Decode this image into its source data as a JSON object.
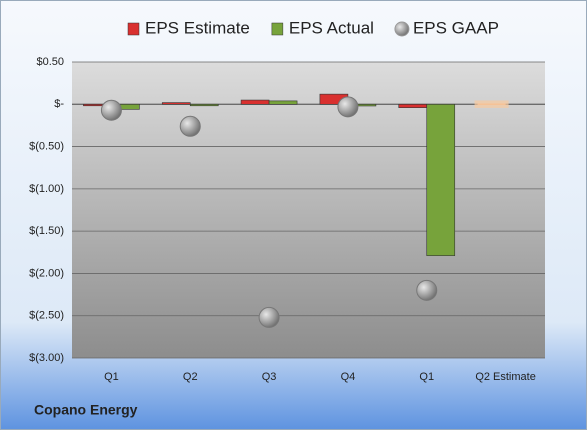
{
  "chart_data": {
    "type": "bar",
    "categories": [
      "Q1",
      "Q2",
      "Q3",
      "Q4",
      "Q1",
      "Q2 Estimate"
    ],
    "series": [
      {
        "name": "EPS Estimate",
        "color": "#d9302f",
        "colors": [
          "#d9302f",
          "#d9302f",
          "#d9302f",
          "#d9302f",
          "#d9302f",
          "#f4b183"
        ],
        "values": [
          -0.01,
          0.02,
          0.05,
          0.12,
          -0.04,
          0.01
        ]
      },
      {
        "name": "EPS Actual",
        "color": "#77a33b",
        "values": [
          -0.06,
          -0.01,
          0.04,
          -0.02,
          -1.79,
          null
        ]
      },
      {
        "name": "EPS GAAP",
        "color": "#9a9a9a",
        "type": "scatter",
        "values": [
          -0.07,
          -0.26,
          -2.52,
          -0.03,
          -2.2,
          null
        ]
      }
    ],
    "ylim": [
      -3,
      0.5
    ],
    "yticks": [
      {
        "value": 0.5,
        "label": "$0.50"
      },
      {
        "value": 0,
        "label": "$-"
      },
      {
        "value": -0.5,
        "label": "$(0.50)"
      },
      {
        "value": -1,
        "label": "$(1.00)"
      },
      {
        "value": -1.5,
        "label": "$(1.50)"
      },
      {
        "value": -2,
        "label": "$(2.00)"
      },
      {
        "value": -2.5,
        "label": "$(2.50)"
      },
      {
        "value": -3,
        "label": "$(3.00)"
      }
    ],
    "grid": true,
    "legend": "top",
    "footer": "Copano Energy"
  }
}
